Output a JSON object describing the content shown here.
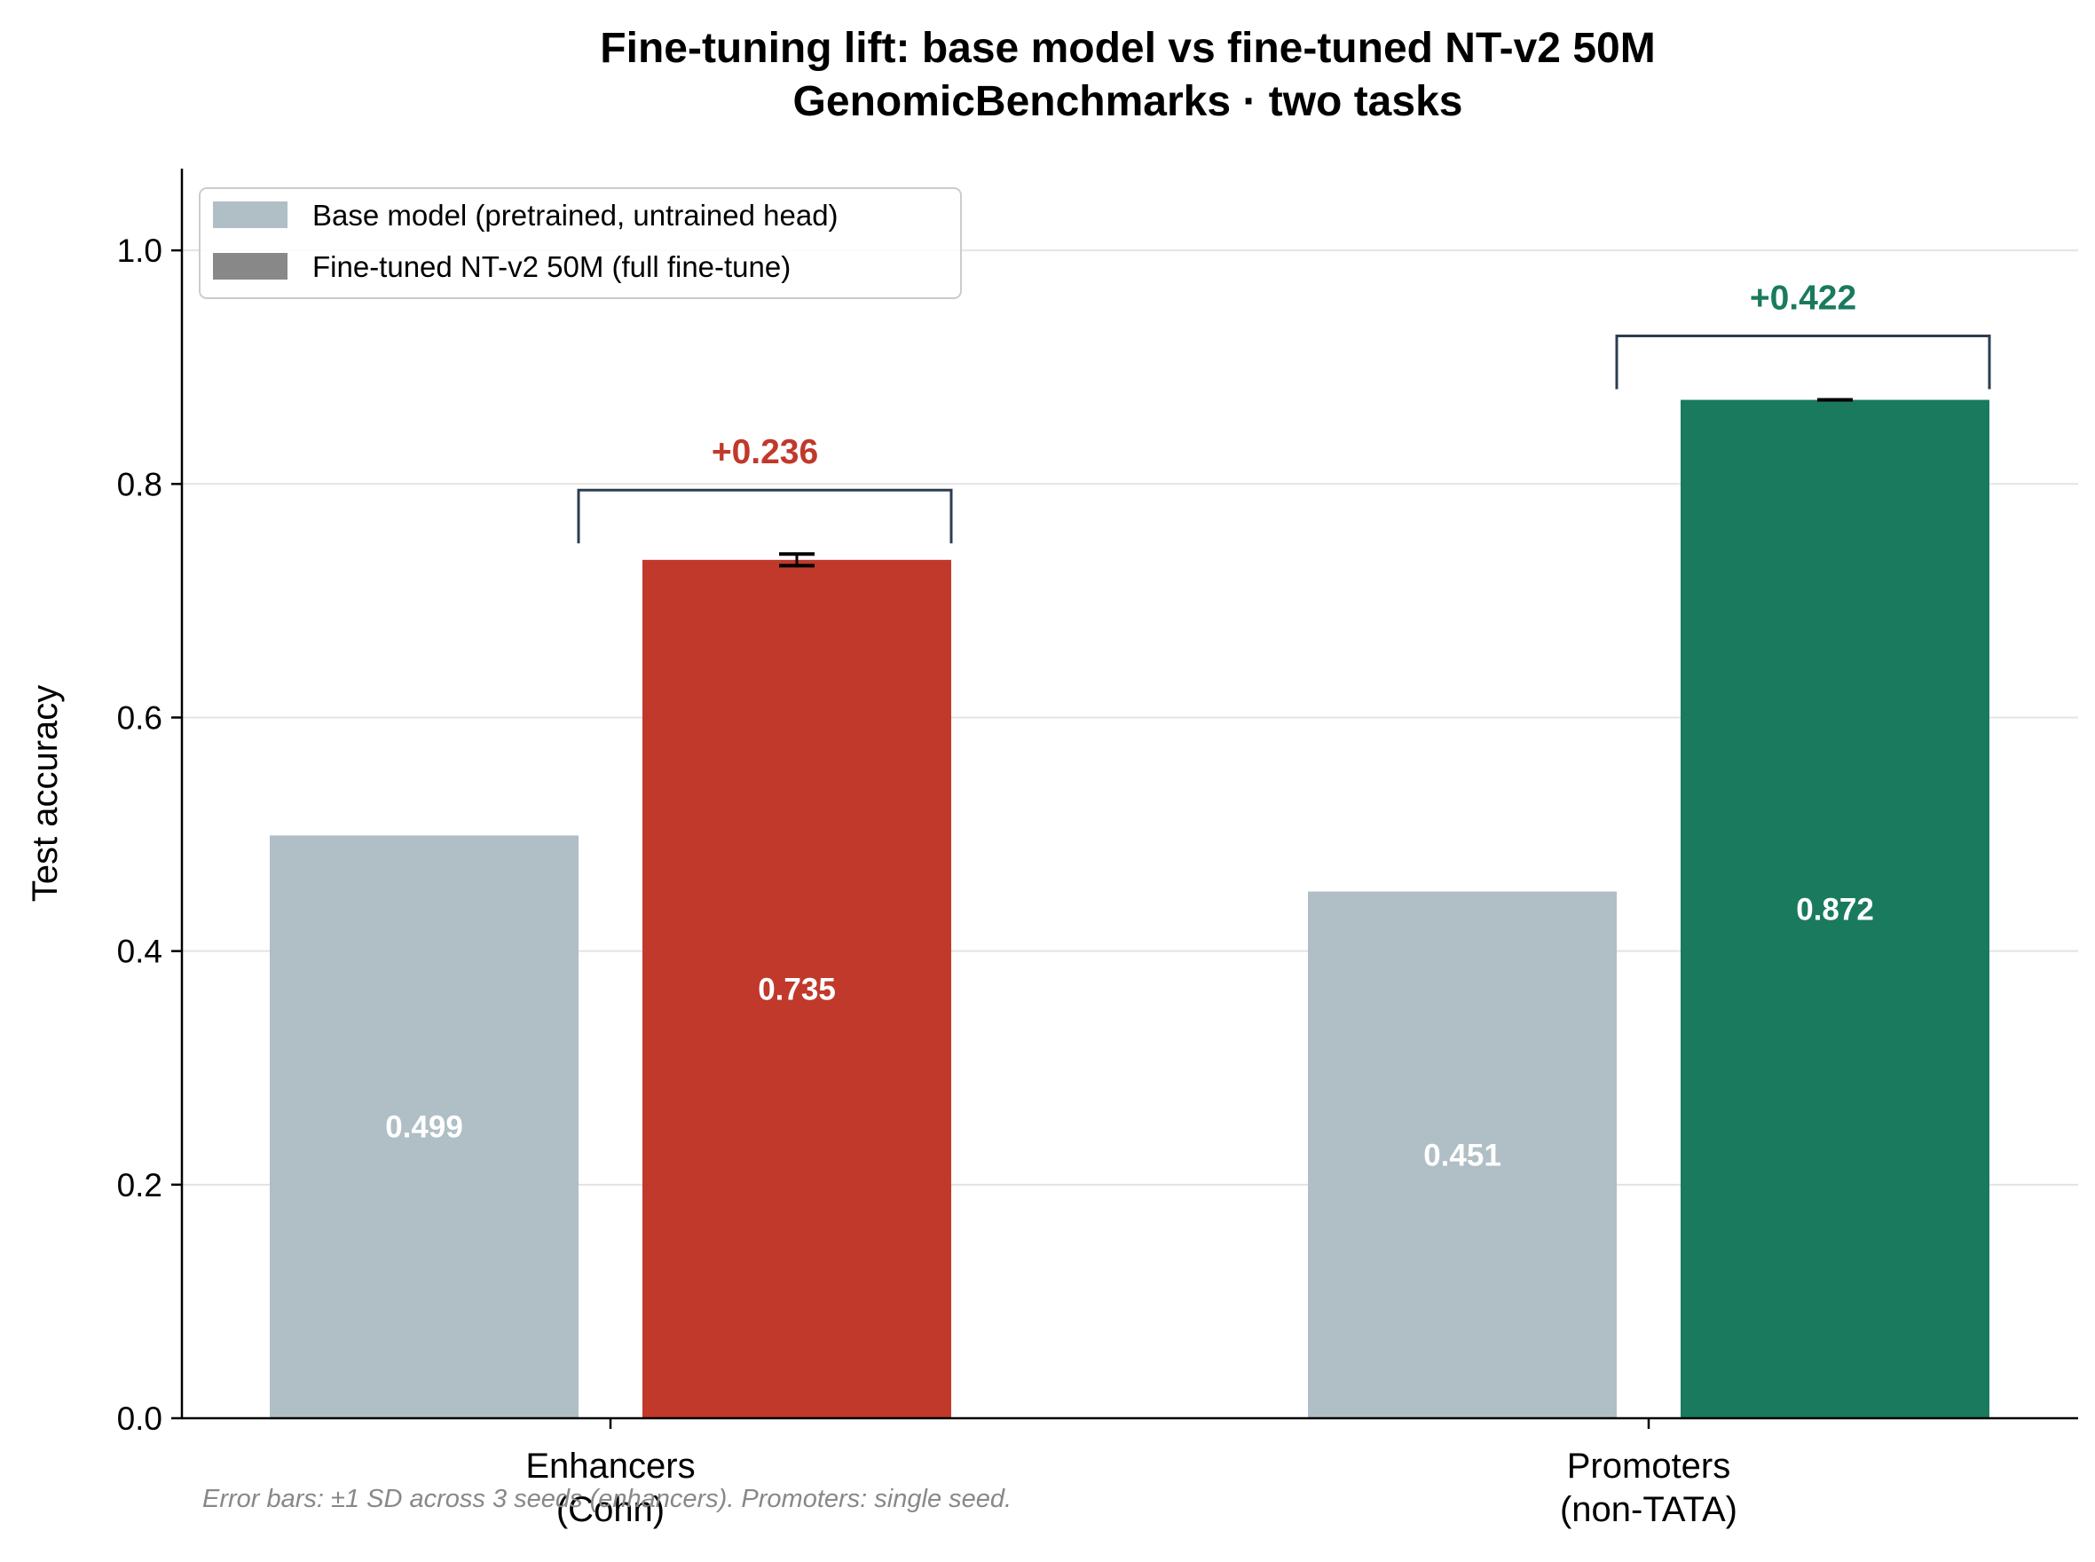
{
  "chart_data": {
    "type": "bar",
    "title": "Fine-tuning lift: base model vs fine-tuned NT-v2 50M",
    "subtitle": "GenomicBenchmarks · two tasks",
    "xlabel": "",
    "ylabel": "Test accuracy",
    "ylim": [
      0,
      1.07
    ],
    "yticks": [
      0.0,
      0.2,
      0.4,
      0.6,
      0.8,
      1.0
    ],
    "ytick_labels": [
      "0.0",
      "0.2",
      "0.4",
      "0.6",
      "0.8",
      "1.0"
    ],
    "grid": "horizontal",
    "legend_placement": "top-left",
    "categories": [
      {
        "line1": "Enhancers",
        "line2": "(Cohn)"
      },
      {
        "line1": "Promoters",
        "line2": "(non-TATA)"
      }
    ],
    "series": [
      {
        "name": "Base model (pretrained, untrained head)",
        "values": [
          0.499,
          0.451
        ],
        "value_labels": [
          "0.499",
          "0.451"
        ],
        "colors": [
          "#b0bec5",
          "#b0bec5"
        ],
        "legend_color": "#b0bec5"
      },
      {
        "name": "Fine-tuned NT-v2 50M (full fine-tune)",
        "values": [
          0.735,
          0.872
        ],
        "value_labels": [
          "0.735",
          "0.872"
        ],
        "errors": [
          0.005,
          0.0
        ],
        "colors": [
          "#c0392b",
          "#1a7a5e"
        ],
        "legend_color": "#888888"
      }
    ],
    "lifts": [
      {
        "label": "+0.236",
        "value": 0.236,
        "color": "#c0392b"
      },
      {
        "label": "+0.422",
        "value": 0.422,
        "color": "#1a7a5e"
      }
    ],
    "bracket_color": "#2c3e50",
    "footnote": "Error bars: ±1 SD across 3 seeds (enhancers). Promoters: single seed."
  }
}
